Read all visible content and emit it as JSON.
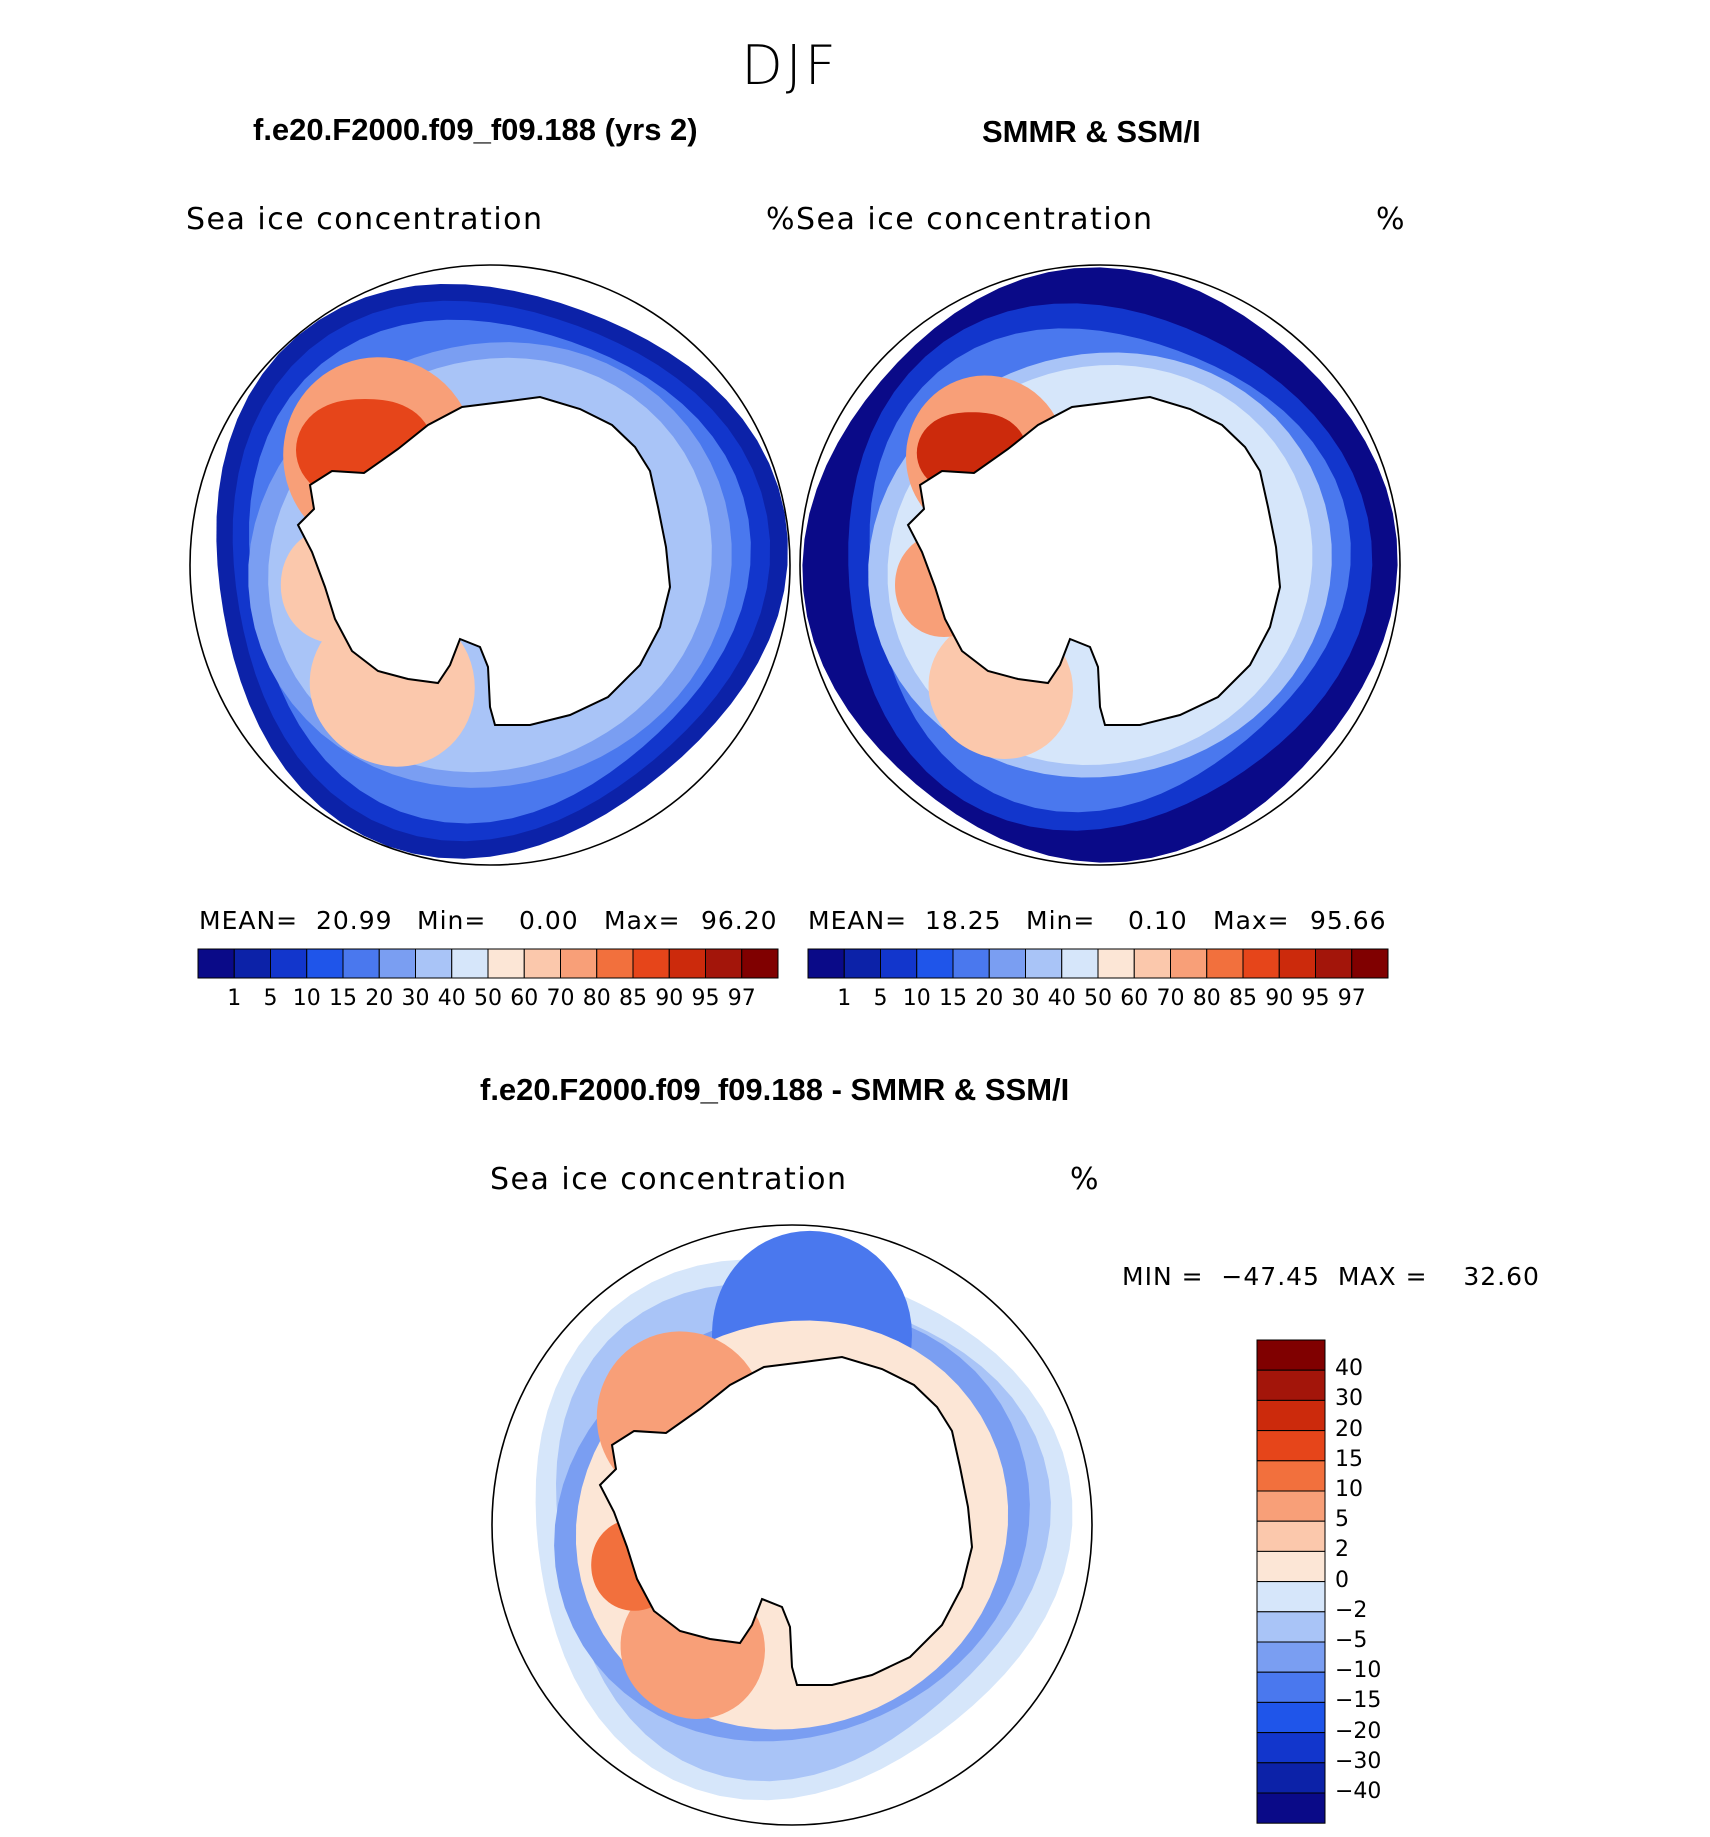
{
  "figure": {
    "season": "DJF",
    "panels": [
      {
        "title": "f.e20.F2000.f09_f09.188 (yrs 2)",
        "label": "Sea ice concentration",
        "units": "%",
        "stats": {
          "mean_label": "MEAN=",
          "mean": "20.99",
          "min_label": "Min=",
          "min": "0.00",
          "max_label": "Max=",
          "max": "96.20"
        }
      },
      {
        "title": "SMMR & SSM/I",
        "label": "Sea ice concentration",
        "units": "%",
        "stats": {
          "mean_label": "MEAN=",
          "mean": "18.25",
          "min_label": "Min=",
          "min": "0.10",
          "max_label": "Max=",
          "max": "95.66"
        }
      },
      {
        "title": "f.e20.F2000.f09_f09.188 - SMMR & SSM/I",
        "label": "Sea ice concentration",
        "units": "%",
        "minmax": "MIN =  −47.45  MAX =    32.60"
      }
    ]
  },
  "chart_data": [
    {
      "type": "heatmap",
      "title": "f.e20.F2000.f09_f09.188 (yrs 2)",
      "variable": "Sea ice concentration",
      "units": "%",
      "projection": "south polar stereographic",
      "stats": {
        "mean": 20.99,
        "min": 0.0,
        "max": 96.2
      },
      "contour_levels": [
        1,
        5,
        10,
        15,
        20,
        30,
        40,
        50,
        60,
        70,
        80,
        85,
        90,
        95,
        97
      ],
      "colors": [
        "#0a0a88",
        "#0c22a8",
        "#1236cc",
        "#1f55ea",
        "#4a78ee",
        "#7a9ef2",
        "#a9c4f7",
        "#d6e6fa",
        "#fce6d6",
        "#fbc8ac",
        "#f89f78",
        "#f2703d",
        "#e6451a",
        "#cc2a0c",
        "#a3150a",
        "#800000"
      ]
    },
    {
      "type": "heatmap",
      "title": "SMMR & SSM/I",
      "variable": "Sea ice concentration",
      "units": "%",
      "projection": "south polar stereographic",
      "stats": {
        "mean": 18.25,
        "min": 0.1,
        "max": 95.66
      },
      "contour_levels": [
        1,
        5,
        10,
        15,
        20,
        30,
        40,
        50,
        60,
        70,
        80,
        85,
        90,
        95,
        97
      ],
      "colors": [
        "#0a0a88",
        "#0c22a8",
        "#1236cc",
        "#1f55ea",
        "#4a78ee",
        "#7a9ef2",
        "#a9c4f7",
        "#d6e6fa",
        "#fce6d6",
        "#fbc8ac",
        "#f89f78",
        "#f2703d",
        "#e6451a",
        "#cc2a0c",
        "#a3150a",
        "#800000"
      ]
    },
    {
      "type": "heatmap",
      "title": "f.e20.F2000.f09_f09.188 - SMMR & SSM/I",
      "variable": "Sea ice concentration",
      "units": "%",
      "projection": "south polar stereographic",
      "stats": {
        "min": -47.45,
        "max": 32.6
      },
      "contour_levels": [
        40,
        30,
        20,
        15,
        10,
        5,
        2,
        0,
        -2,
        -5,
        -10,
        -15,
        -20,
        -30,
        -40
      ],
      "colors": [
        "#800000",
        "#a3150a",
        "#cc2a0c",
        "#e6451a",
        "#f2703d",
        "#f89f78",
        "#fbc8ac",
        "#fce6d6",
        "#d6e6fa",
        "#a9c4f7",
        "#7a9ef2",
        "#4a78ee",
        "#1f55ea",
        "#1236cc",
        "#0c22a8",
        "#0a0a88"
      ]
    }
  ]
}
